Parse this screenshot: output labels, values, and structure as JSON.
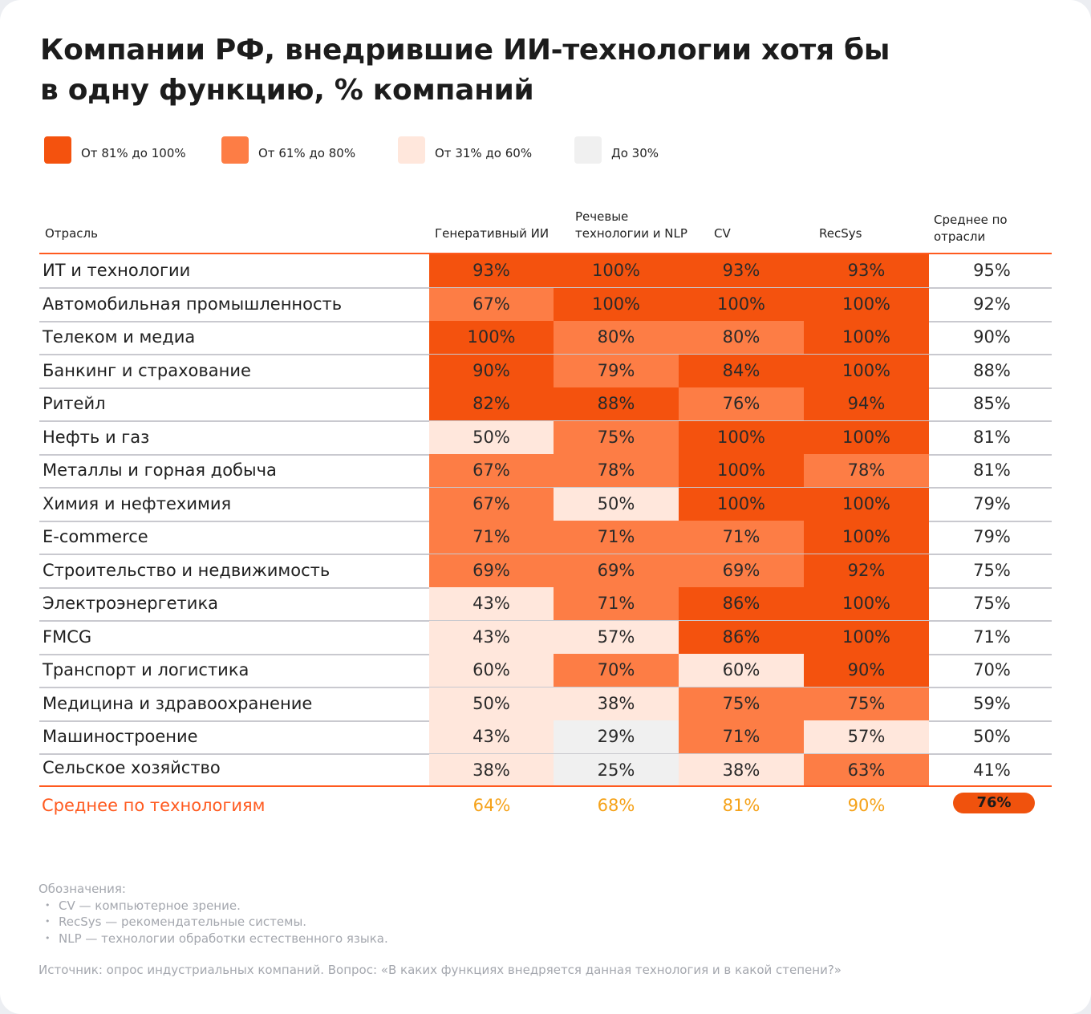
{
  "title": {
    "line1": "Компании РФ, внедрившие ИИ-технологии хотя бы",
    "line2": "в одну функцию, % компаний"
  },
  "legend": [
    {
      "label": "От 81% до 100%",
      "color": "#f4520e"
    },
    {
      "label": "От 61% до 80%",
      "color": "#fd7d45"
    },
    {
      "label": "От 31% до 60%",
      "color": "#ffe7dc"
    },
    {
      "label": "До 30%",
      "color": "#f0f0f0"
    }
  ],
  "chart_data": {
    "type": "heatmap",
    "row_header": "Отрасль",
    "columns": [
      "Генеративный ИИ",
      "Речевые технологии и NLP",
      "CV",
      "RecSys"
    ],
    "columns_display": [
      [
        "Генеративный ИИ"
      ],
      [
        "Речевые",
        "технологии и NLP"
      ],
      [
        "CV"
      ],
      [
        "RecSys"
      ]
    ],
    "avg_header": [
      "Среднее по",
      "отрасли"
    ],
    "rows": [
      {
        "label": "ИТ и технологии",
        "values": [
          93,
          100,
          93,
          93
        ],
        "avg": 95
      },
      {
        "label": "Автомобильная промышленность",
        "values": [
          67,
          100,
          100,
          100
        ],
        "avg": 92
      },
      {
        "label": "Телеком и медиа",
        "values": [
          100,
          80,
          80,
          100
        ],
        "avg": 90
      },
      {
        "label": "Банкинг и страхование",
        "values": [
          90,
          79,
          84,
          100
        ],
        "avg": 88
      },
      {
        "label": "Ритейл",
        "values": [
          82,
          88,
          76,
          94
        ],
        "avg": 85
      },
      {
        "label": "Нефть и газ",
        "values": [
          50,
          75,
          100,
          100
        ],
        "avg": 81
      },
      {
        "label": "Металлы и горная добыча",
        "values": [
          67,
          78,
          100,
          78
        ],
        "avg": 81
      },
      {
        "label": "Химия и нефтехимия",
        "values": [
          67,
          50,
          100,
          100
        ],
        "avg": 79
      },
      {
        "label": "E-commerce",
        "values": [
          71,
          71,
          71,
          100
        ],
        "avg": 79
      },
      {
        "label": "Строительство и недвижимость",
        "values": [
          69,
          69,
          69,
          92
        ],
        "avg": 75
      },
      {
        "label": "Электроэнергетика",
        "values": [
          43,
          71,
          86,
          100
        ],
        "avg": 75
      },
      {
        "label": "FMCG",
        "values": [
          43,
          57,
          86,
          100
        ],
        "avg": 71
      },
      {
        "label": "Транспорт и логистика",
        "values": [
          60,
          70,
          60,
          90
        ],
        "avg": 70
      },
      {
        "label": "Медицина и здравоохранение",
        "values": [
          50,
          38,
          75,
          75
        ],
        "avg": 59
      },
      {
        "label": "Машиностроение",
        "values": [
          43,
          29,
          71,
          57
        ],
        "avg": 50
      },
      {
        "label": "Сельское хозяйство",
        "values": [
          38,
          25,
          38,
          63
        ],
        "avg": 41
      }
    ],
    "technology_average": {
      "label": "Среднее по технологиям",
      "values": [
        64,
        68,
        81,
        90
      ],
      "overall": 76
    },
    "bins": [
      {
        "min": 81,
        "max": 100,
        "color": "#f4520e"
      },
      {
        "min": 61,
        "max": 80,
        "color": "#fd7d45"
      },
      {
        "min": 31,
        "max": 60,
        "color": "#ffe7dc"
      },
      {
        "min": 0,
        "max": 30,
        "color": "#f0f0f0"
      }
    ],
    "unit": "%"
  },
  "notes": {
    "heading": "Обозначения:",
    "items": [
      "CV — компьютерное зрение.",
      "RecSys — рекомендательные системы.",
      "NLP — технологии обработки естественного языка."
    ]
  },
  "source": "Источник: опрос индустриальных компаний. Вопрос: «В каких функциях внедряется данная технология и в какой степени?»"
}
